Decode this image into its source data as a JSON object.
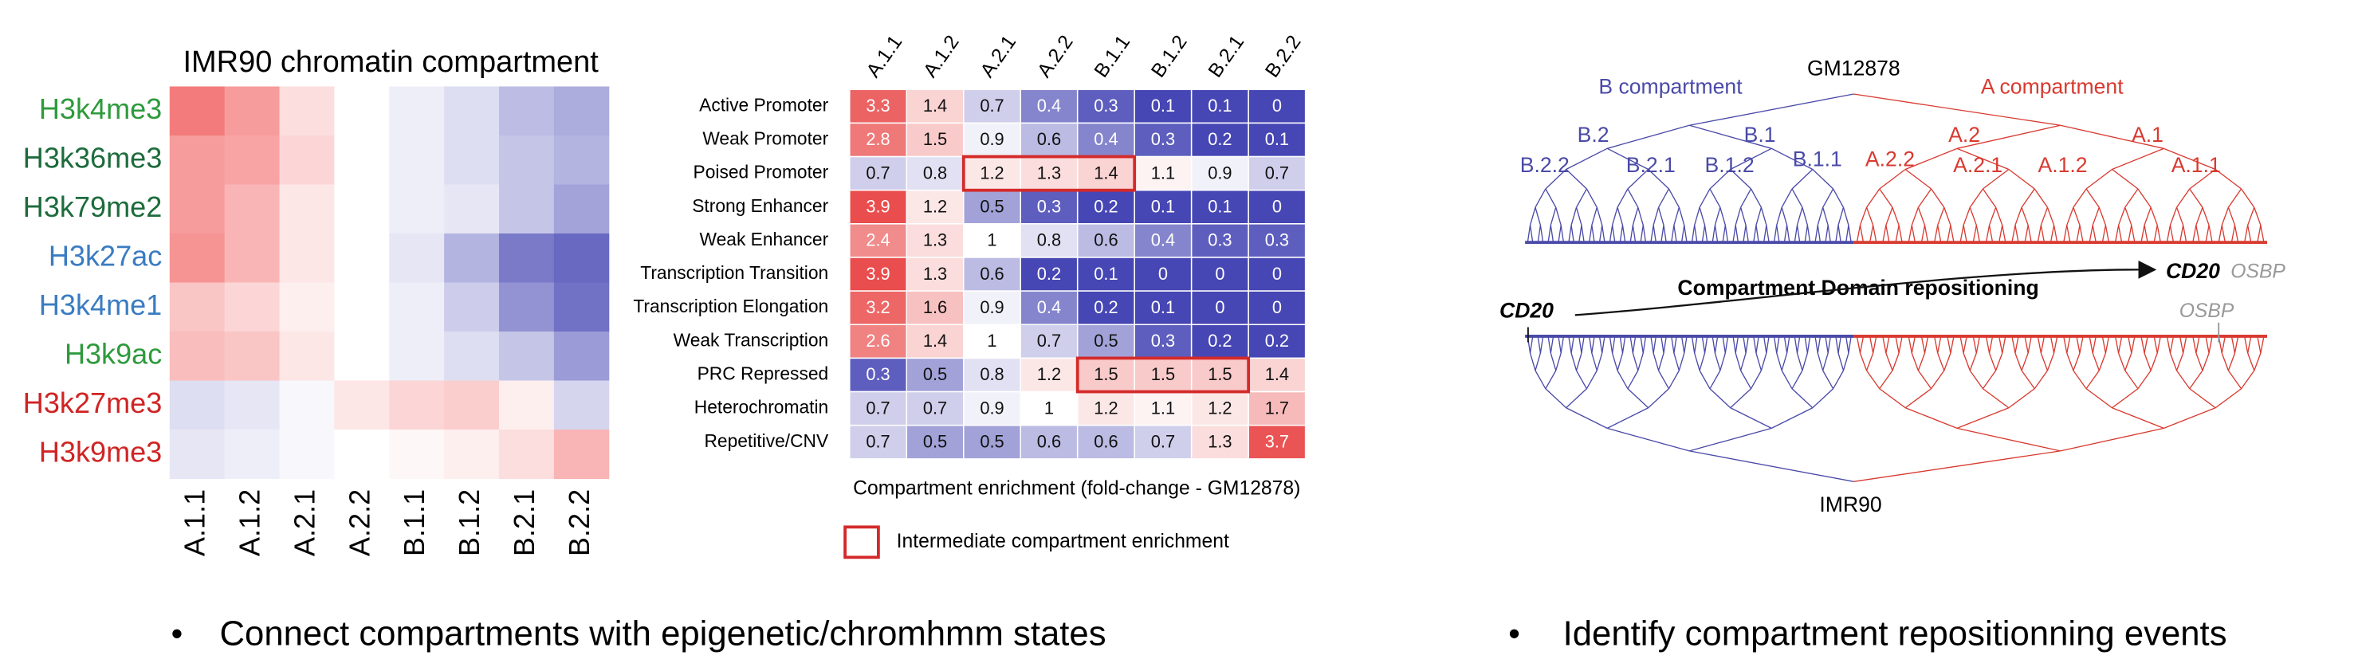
{
  "chart_data": [
    {
      "type": "heatmap",
      "title": "IMR90 chromatin compartment",
      "rows": [
        "H3k4me3",
        "H3k36me3",
        "H3k79me2",
        "H3k27ac",
        "H3k4me1",
        "H3k9ac",
        "H3k27me3",
        "H3k9me3"
      ],
      "row_label_colors": [
        "#2e9a3c",
        "#1d6b3c",
        "#1d6b3c",
        "#3a7cc2",
        "#3a7cc2",
        "#2e9a3c",
        "#d02424",
        "#d02424"
      ],
      "columns": [
        "A.1.1",
        "A.1.2",
        "A.2.1",
        "A.2.2",
        "B.1.1",
        "B.1.2",
        "B.2.1",
        "B.2.2"
      ],
      "values": [
        [
          0.8,
          0.6,
          0.2,
          0,
          -0.1,
          -0.2,
          -0.4,
          -0.5
        ],
        [
          0.6,
          0.55,
          0.25,
          0,
          -0.1,
          -0.2,
          -0.35,
          -0.45
        ],
        [
          0.6,
          0.45,
          0.15,
          0,
          -0.1,
          -0.15,
          -0.35,
          -0.55
        ],
        [
          0.65,
          0.45,
          0.15,
          0,
          -0.15,
          -0.45,
          -0.8,
          -0.9
        ],
        [
          0.35,
          0.25,
          0.1,
          0,
          -0.1,
          -0.3,
          -0.65,
          -0.85
        ],
        [
          0.4,
          0.35,
          0.15,
          0,
          -0.1,
          -0.2,
          -0.35,
          -0.6
        ],
        [
          -0.2,
          -0.15,
          -0.05,
          0.15,
          0.25,
          0.3,
          0.1,
          -0.25
        ],
        [
          -0.15,
          -0.1,
          -0.05,
          0,
          0.05,
          0.1,
          0.2,
          0.45
        ]
      ],
      "zlim": [
        -1,
        1
      ],
      "low_color": "#4646b4",
      "high_color": "#f04848"
    },
    {
      "type": "heatmap",
      "xlabel": "Compartment enrichment (fold-change - GM12878)",
      "rows": [
        "Active Promoter",
        "Weak Promoter",
        "Poised Promoter",
        "Strong Enhancer",
        "Weak Enhancer",
        "Transcription Transition",
        "Transcription Elongation",
        "Weak Transcription",
        "PRC Repressed",
        "Heterochromatin",
        "Repetitive/CNV"
      ],
      "columns": [
        "A.1.1",
        "A.1.2",
        "A.2.1",
        "A.2.2",
        "B.1.1",
        "B.1.2",
        "B.2.1",
        "B.2.2"
      ],
      "values": [
        [
          3.3,
          1.4,
          0.7,
          0.4,
          0.3,
          0.1,
          0.1,
          0
        ],
        [
          2.8,
          1.5,
          0.9,
          0.6,
          0.4,
          0.3,
          0.2,
          0.1
        ],
        [
          0.7,
          0.8,
          1.2,
          1.3,
          1.4,
          1.1,
          0.9,
          0.7
        ],
        [
          3.9,
          1.2,
          0.5,
          0.3,
          0.2,
          0.1,
          0.1,
          0
        ],
        [
          2.4,
          1.3,
          1,
          0.8,
          0.6,
          0.4,
          0.3,
          0.3
        ],
        [
          3.9,
          1.3,
          0.6,
          0.2,
          0.1,
          0,
          0,
          0
        ],
        [
          3.2,
          1.6,
          0.9,
          0.4,
          0.2,
          0.1,
          0,
          0
        ],
        [
          2.6,
          1.4,
          1,
          0.7,
          0.5,
          0.3,
          0.2,
          0.2
        ],
        [
          0.3,
          0.5,
          0.8,
          1.2,
          1.5,
          1.5,
          1.5,
          1.4
        ],
        [
          0.7,
          0.7,
          0.9,
          1,
          1.2,
          1.1,
          1.2,
          1.7
        ],
        [
          0.7,
          0.5,
          0.5,
          0.6,
          0.6,
          0.7,
          1.3,
          3.7
        ]
      ],
      "low_color": "#3c3cb0",
      "high_color": "#e84040",
      "log_color": true,
      "highlights": [
        {
          "row": "Poised Promoter",
          "from": "A.2.1",
          "to": "B.1.1"
        },
        {
          "row": "PRC Repressed",
          "from": "B.1.1",
          "to": "B.2.1"
        }
      ],
      "highlight_color": "#d42a2a",
      "legend": "Intermediate compartment enrichment"
    }
  ],
  "diagram": {
    "top_root": "GM12878",
    "bottom_root": "IMR90",
    "b_label": "B compartment",
    "a_label": "A compartment",
    "b_color": "#4a4aa8",
    "a_color": "#d83a30",
    "level1": [
      "B.2",
      "B.1",
      "A.2",
      "A.1"
    ],
    "level2": [
      "B.2.2",
      "B.2.1",
      "B.1.2",
      "B.1.1",
      "A.2.2",
      "A.2.1",
      "A.1.2",
      "A.1.1"
    ],
    "arrow_label": "Compartment Domain repositioning",
    "gene_moving": "CD20",
    "gene_static": "OSBP"
  },
  "bullets": [
    "Connect compartments with epigenetic/chromhmm states",
    "Identify compartment repositionning events"
  ]
}
